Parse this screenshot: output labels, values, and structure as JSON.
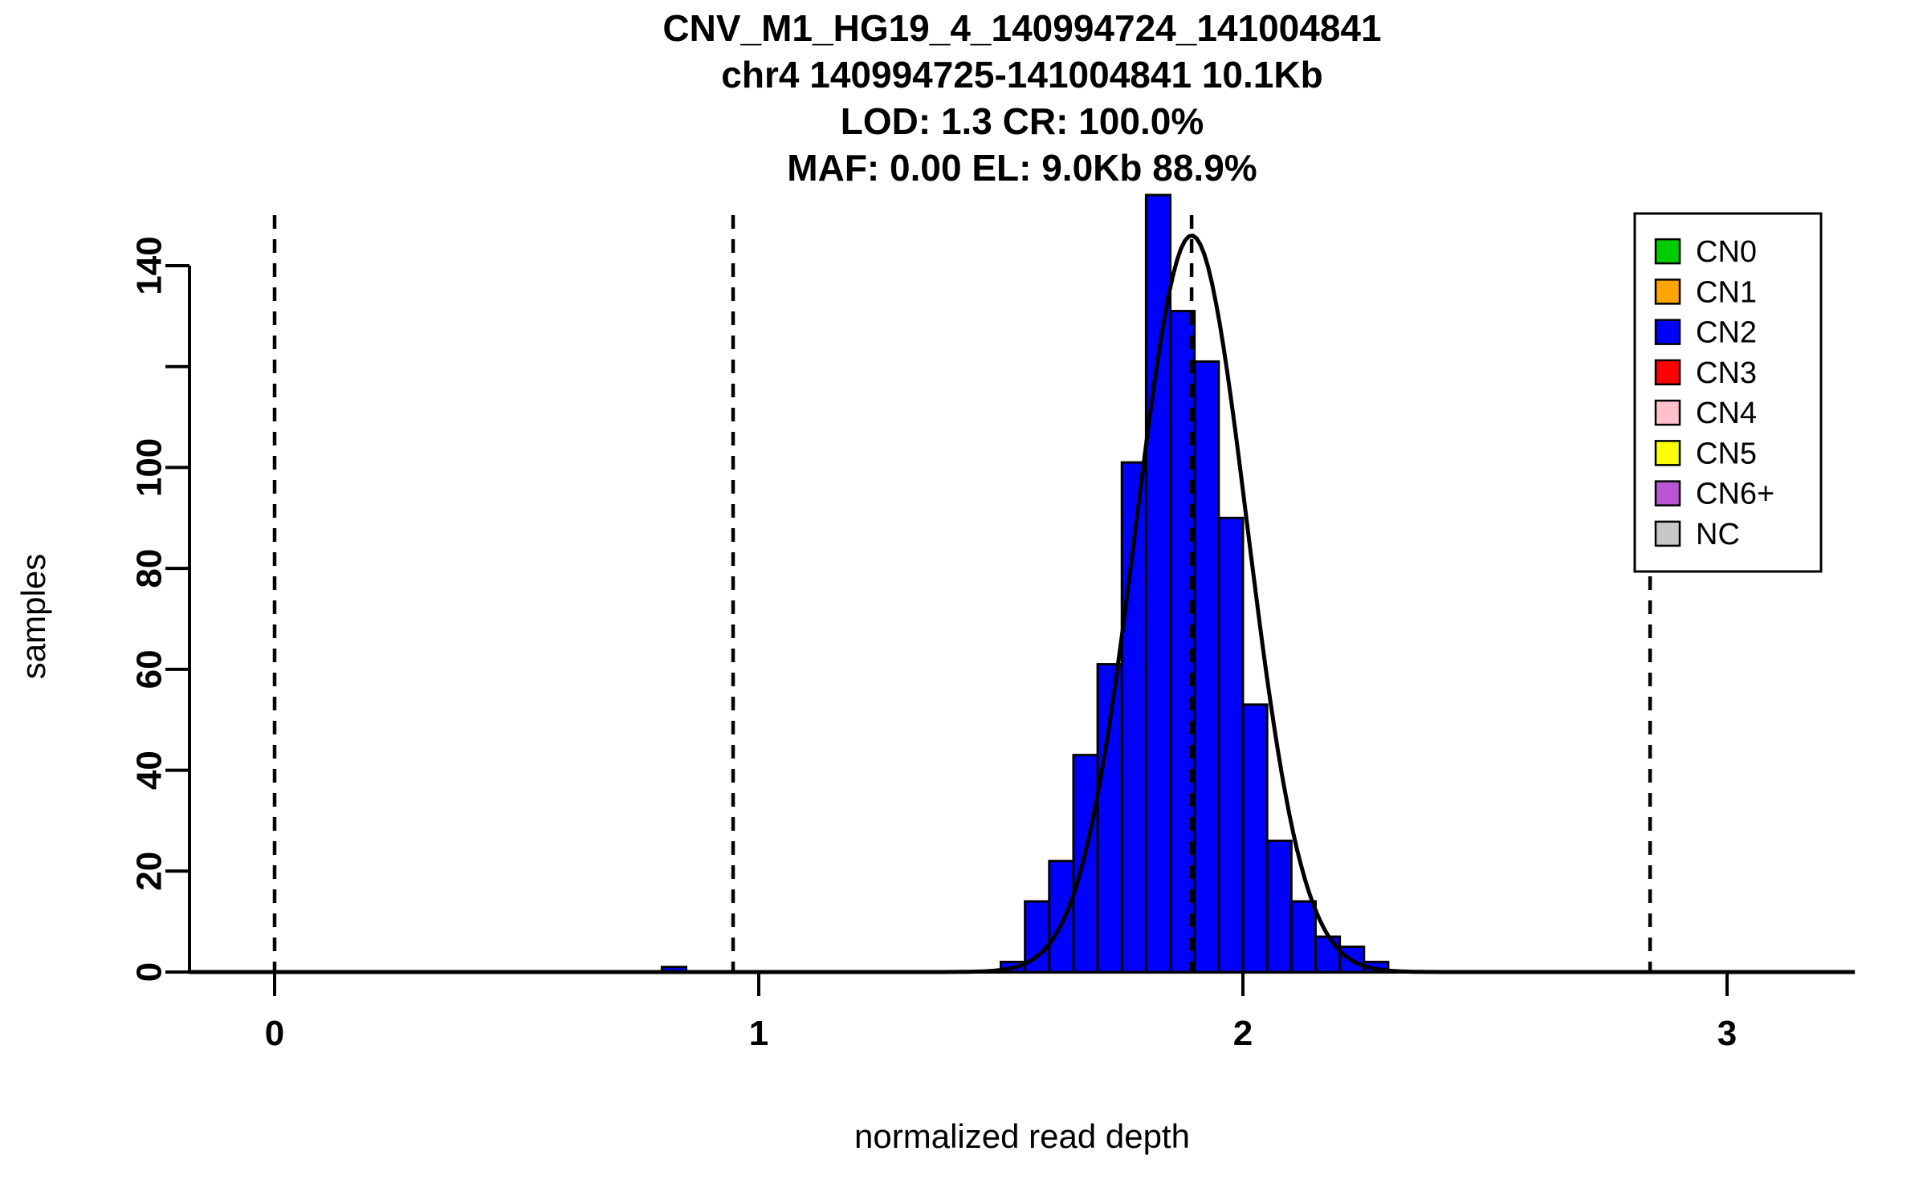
{
  "chart_data": {
    "type": "bar",
    "subtype": "histogram-with-gaussian-fit",
    "title_lines": [
      "CNV_M1_HG19_4_140994724_141004841",
      "chr4 140994725-141004841 10.1Kb",
      "LOD: 1.3 CR: 100.0%",
      "MAF: 0.00 EL: 9.0Kb 88.9%"
    ],
    "xlabel": "normalized read depth",
    "ylabel": "samples",
    "xlim": [
      -0.18,
      3.27
    ],
    "ylim": [
      0,
      150
    ],
    "x_ticks": [
      0,
      1,
      2,
      3
    ],
    "y_ticks": [
      0,
      20,
      40,
      60,
      80,
      100,
      120,
      140
    ],
    "y_tick_labels": [
      "0",
      "20",
      "40",
      "60",
      "80",
      "100",
      "",
      "140"
    ],
    "grid": false,
    "bin_width": 0.05,
    "bars": [
      {
        "x0": 0.8,
        "count": 1
      },
      {
        "x0": 1.5,
        "count": 2
      },
      {
        "x0": 1.55,
        "count": 14
      },
      {
        "x0": 1.6,
        "count": 22
      },
      {
        "x0": 1.65,
        "count": 43
      },
      {
        "x0": 1.7,
        "count": 61
      },
      {
        "x0": 1.75,
        "count": 101
      },
      {
        "x0": 1.8,
        "count": 154
      },
      {
        "x0": 1.85,
        "count": 131
      },
      {
        "x0": 1.9,
        "count": 121
      },
      {
        "x0": 1.95,
        "count": 90
      },
      {
        "x0": 2.0,
        "count": 53
      },
      {
        "x0": 2.05,
        "count": 26
      },
      {
        "x0": 2.1,
        "count": 14
      },
      {
        "x0": 2.15,
        "count": 7
      },
      {
        "x0": 2.2,
        "count": 5
      },
      {
        "x0": 2.25,
        "count": 2
      }
    ],
    "bar_color": "#0000FF",
    "bar_border_color": "#000000",
    "dashed_guide_lines_x": [
      0,
      0.947,
      1.894,
      2.841
    ],
    "fit_curve": {
      "shape": "gaussian",
      "mean": 1.894,
      "sd": 0.115,
      "amplitude": 146,
      "color": "#000000"
    },
    "legend": {
      "position": "top-right",
      "items": [
        {
          "label": "CN0",
          "color": "#00CC00"
        },
        {
          "label": "CN1",
          "color": "#FFA500"
        },
        {
          "label": "CN2",
          "color": "#0000FF"
        },
        {
          "label": "CN3",
          "color": "#FF0000"
        },
        {
          "label": "CN4",
          "color": "#FFC0CB"
        },
        {
          "label": "CN5",
          "color": "#FFFF00"
        },
        {
          "label": "CN6+",
          "color": "#BA55D3"
        },
        {
          "label": "NC",
          "color": "#C8C8C8"
        }
      ]
    }
  }
}
